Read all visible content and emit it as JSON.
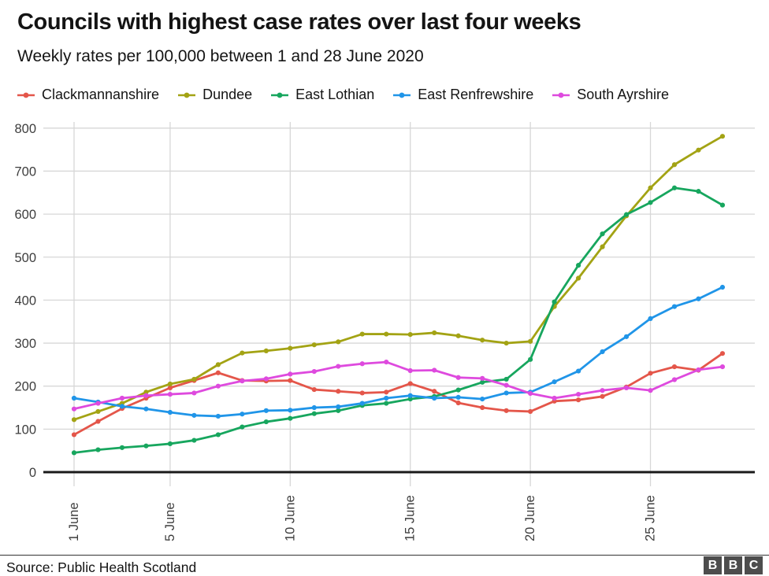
{
  "header": {
    "title": "Councils with highest case rates over last four weeks",
    "subtitle": "Weekly rates per 100,000 between 1 and 28 June 2020"
  },
  "chart_data": {
    "type": "line",
    "title": "Councils with highest case rates over last four weeks",
    "subtitle": "Weekly rates per 100,000 between 1 and 28 June 2020",
    "xlabel": "",
    "ylabel": "",
    "x_days_june": [
      1,
      2,
      3,
      4,
      5,
      6,
      7,
      8,
      9,
      10,
      11,
      12,
      13,
      14,
      15,
      16,
      17,
      18,
      19,
      20,
      21,
      22,
      23,
      24,
      25,
      26,
      27,
      28
    ],
    "x_tick_days": [
      1,
      5,
      10,
      15,
      20,
      25
    ],
    "x_tick_labels": [
      "1 June",
      "5 June",
      "10 June",
      "15 June",
      "20 June",
      "25 June"
    ],
    "ylim": [
      0,
      800
    ],
    "y_ticks": [
      0,
      100,
      200,
      300,
      400,
      500,
      600,
      700,
      800
    ],
    "grid": true,
    "legend_position": "top",
    "marker": "circle",
    "colors": {
      "grid": "#d7d7d7",
      "axis": "#1a1a1a",
      "tick_text": "#3d3d3d"
    },
    "series": [
      {
        "name": "Clackmannanshire",
        "color": "#e4564a",
        "values": [
          87,
          118,
          148,
          172,
          196,
          213,
          231,
          213,
          212,
          213,
          192,
          188,
          184,
          186,
          206,
          188,
          161,
          150,
          143,
          141,
          165,
          168,
          176,
          198,
          230,
          245,
          237,
          276
        ]
      },
      {
        "name": "Dundee",
        "color": "#a3a314",
        "values": [
          122,
          141,
          160,
          186,
          205,
          216,
          250,
          277,
          282,
          288,
          296,
          303,
          321,
          321,
          320,
          324,
          317,
          307,
          300,
          304,
          385,
          451,
          524,
          596,
          661,
          715,
          749,
          781
        ]
      },
      {
        "name": "East Lothian",
        "color": "#17a65e",
        "values": [
          45,
          52,
          57,
          61,
          66,
          74,
          87,
          105,
          117,
          125,
          136,
          143,
          155,
          160,
          170,
          176,
          191,
          209,
          216,
          262,
          396,
          481,
          554,
          599,
          627,
          661,
          653,
          621
        ]
      },
      {
        "name": "East Renfrewshire",
        "color": "#2095e8",
        "values": [
          172,
          163,
          153,
          147,
          139,
          132,
          130,
          135,
          143,
          144,
          150,
          152,
          160,
          172,
          178,
          172,
          174,
          170,
          184,
          186,
          210,
          235,
          280,
          315,
          357,
          385,
          403,
          430
        ]
      },
      {
        "name": "South Ayrshire",
        "color": "#de4ade",
        "values": [
          147,
          160,
          172,
          178,
          181,
          184,
          200,
          212,
          217,
          228,
          234,
          246,
          252,
          256,
          236,
          237,
          220,
          218,
          202,
          183,
          172,
          181,
          190,
          196,
          190,
          215,
          238,
          245
        ]
      }
    ]
  },
  "footer": {
    "source": "Source: Public Health Scotland",
    "logo_letters": [
      "B",
      "B",
      "C"
    ]
  }
}
